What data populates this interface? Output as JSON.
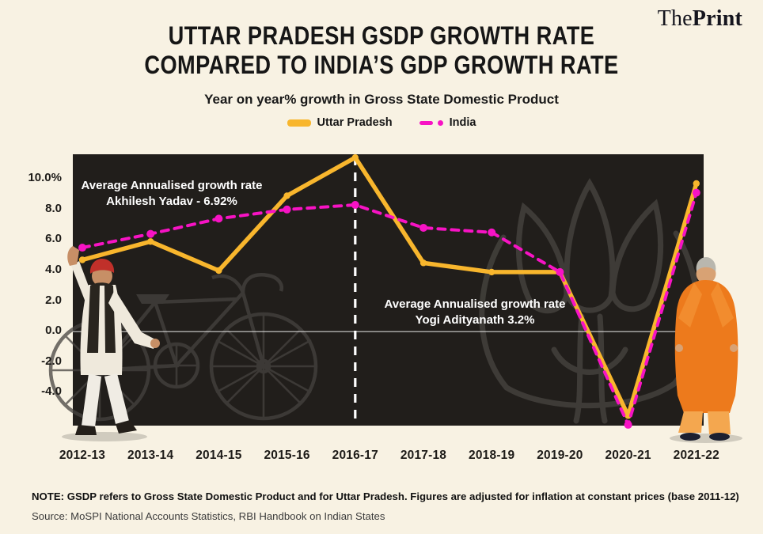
{
  "brand": {
    "the": "The",
    "print": "Print"
  },
  "header": {
    "title_line1": "UTTAR PRADESH GSDP GROWTH RATE",
    "title_line2": "COMPARED TO INDIA’S GDP GROWTH RATE",
    "subtitle": "Year on year% growth in Gross State Domestic Product"
  },
  "legend": [
    {
      "label": "Uttar Pradesh",
      "color": "#f8b62d",
      "style": "solid"
    },
    {
      "label": "India",
      "color": "#f713c4",
      "style": "dashed"
    }
  ],
  "chart_data": {
    "type": "line",
    "title": "Uttar Pradesh GSDP growth rate compared to India’s GDP growth rate",
    "subtitle": "Year on year% growth in Gross State Domestic Product",
    "categories": [
      "2012-13",
      "2013-14",
      "2014-15",
      "2015-16",
      "2016-17",
      "2017-18",
      "2018-19",
      "2019-20",
      "2020-21",
      "2021-22"
    ],
    "series": [
      {
        "name": "Uttar Pradesh",
        "color": "#f8b62d",
        "style": "solid",
        "values": [
          4.7,
          5.9,
          4.0,
          8.9,
          11.4,
          4.5,
          3.9,
          3.9,
          -5.5,
          9.7
        ]
      },
      {
        "name": "India",
        "color": "#f713c4",
        "style": "dashed",
        "values": [
          5.5,
          6.4,
          7.4,
          8.0,
          8.3,
          6.8,
          6.5,
          3.9,
          -6.1,
          9.1
        ]
      }
    ],
    "xlabel": "",
    "ylabel": "",
    "ylim": [
      -6.3,
      11.6
    ],
    "yticks": [
      {
        "v": 10,
        "label": "10.0%"
      },
      {
        "v": 8,
        "label": "8.0"
      },
      {
        "v": 6,
        "label": "6.0"
      },
      {
        "v": 4,
        "label": "4.0"
      },
      {
        "v": 2,
        "label": "2.0"
      },
      {
        "v": 0,
        "label": "0.0"
      },
      {
        "v": -2,
        "label": "-2.0"
      },
      {
        "v": -4,
        "label": "-4.0"
      }
    ],
    "grid": "zero-line only",
    "legend_position": "top",
    "zero_line": true,
    "highlight_x": "2016-17",
    "annotations": [
      {
        "line1": "Average Annualised growth rate",
        "line2": "Akhilesh Yadav - 6.92%"
      },
      {
        "line1": "Average Annualised growth rate",
        "line2": "Yogi Adityanath 3.2%"
      }
    ]
  },
  "footer": {
    "note": "NOTE: GSDP refers to Gross State Domestic Product and for Uttar Pradesh. Figures are adjusted for inflation at constant prices (base 2011-12)",
    "source": "Source: MoSPI National Accounts Statistics, RBI Handbook on Indian States"
  },
  "colors": {
    "background": "#f8f2e3",
    "chart_background": "#211e1b",
    "watermark": "#46433f",
    "uttar_pradesh_line": "#f8b62d",
    "india_line": "#f713c4",
    "highlight_line": "#ffffff"
  }
}
